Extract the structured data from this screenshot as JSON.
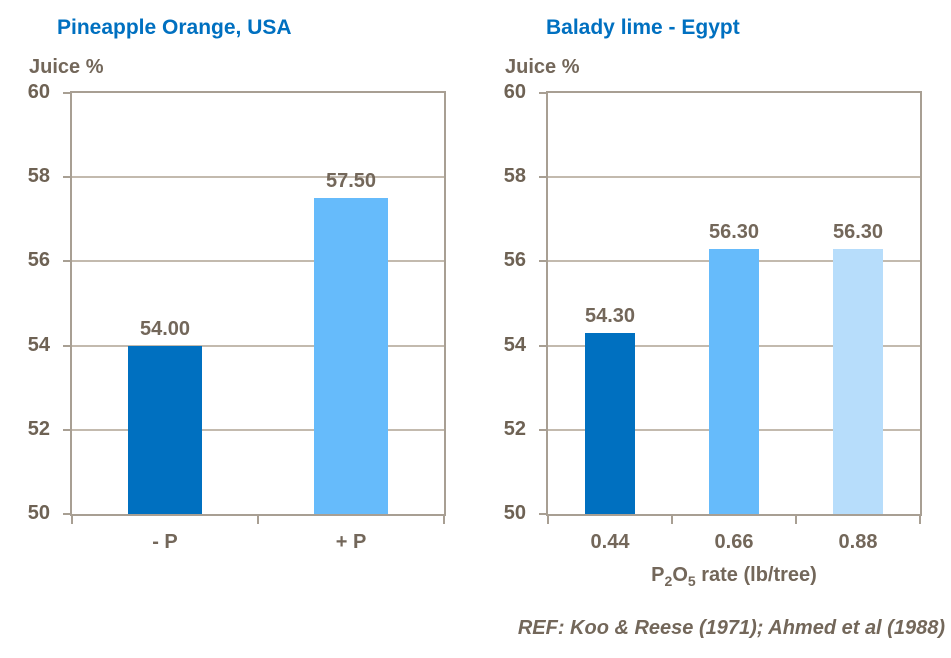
{
  "page": {
    "background": "#ffffff",
    "title_color": "#0070C0",
    "text_color": "#73675A",
    "gridline_color": "#C3BAAE",
    "frame_color": "#A89F93"
  },
  "chart_data": [
    {
      "type": "bar",
      "title": "Pineapple Orange, USA",
      "ylabel": "Juice %",
      "xlabel": "",
      "categories": [
        "- P",
        "+ P"
      ],
      "values": [
        54.0,
        57.5
      ],
      "value_labels": [
        "54.00",
        "57.50"
      ],
      "bar_colors": [
        "#0070C0",
        "#66BBFB"
      ],
      "ylim": [
        50,
        60
      ],
      "yticks": [
        50,
        52,
        54,
        56,
        58,
        60
      ],
      "grid": true,
      "legend": "none"
    },
    {
      "type": "bar",
      "title": "Balady lime - Egypt",
      "ylabel": "Juice %",
      "xlabel": "P2O5 rate (lb/tree)",
      "xlabel_parts": [
        {
          "text": "P",
          "sub": false
        },
        {
          "text": "2",
          "sub": true
        },
        {
          "text": "O",
          "sub": false
        },
        {
          "text": "5",
          "sub": true
        },
        {
          "text": " rate (lb/tree)",
          "sub": false
        }
      ],
      "categories": [
        "0.44",
        "0.66",
        "0.88"
      ],
      "values": [
        54.3,
        56.3,
        56.3
      ],
      "value_labels": [
        "54.30",
        "56.30",
        "56.30"
      ],
      "bar_colors": [
        "#0070C0",
        "#66BBFB",
        "#B7DDFB"
      ],
      "ylim": [
        50,
        60
      ],
      "yticks": [
        50,
        52,
        54,
        56,
        58,
        60
      ],
      "grid": true,
      "legend": "none"
    }
  ],
  "footer": {
    "ref": "REF: Koo & Reese (1971); Ahmed et al (1988)"
  }
}
